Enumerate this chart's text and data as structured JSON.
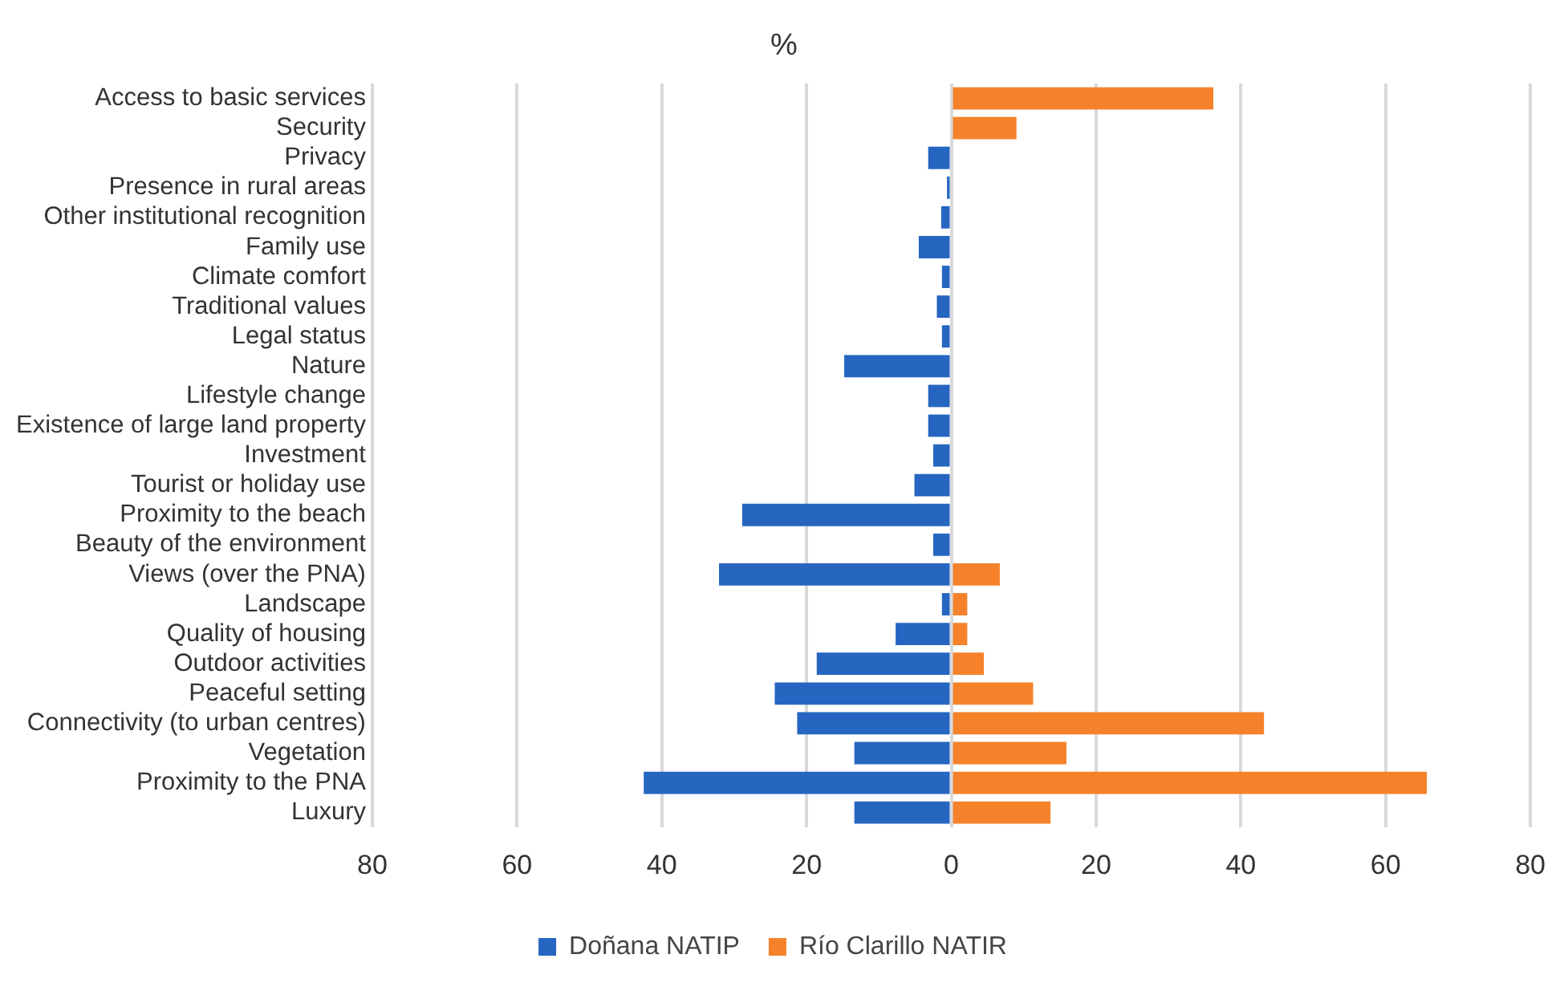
{
  "chart_data": {
    "type": "bar",
    "orientation": "horizontal",
    "title": "%",
    "categories": [
      "Access to basic services",
      "Security",
      "Privacy",
      "Presence in rural areas",
      "Other institutional recognition",
      "Family use",
      "Climate comfort",
      "Traditional values",
      "Legal status",
      "Nature",
      "Lifestyle change",
      "Existence of large land property",
      "Investment",
      "Tourist or holiday use",
      "Proximity to the beach",
      "Beauty of the environment",
      "Views (over the PNA)",
      "Landscape",
      "Quality of housing",
      "Outdoor activities",
      "Peaceful setting",
      "Connectivity (to urban centres)",
      "Vegetation",
      "Proximity to the PNA",
      "Luxury"
    ],
    "series": [
      {
        "name": "Doñana NATIP",
        "color": "#2666c1",
        "values": [
          null,
          null,
          -3.2,
          -0.6,
          -1.4,
          -4.5,
          -1.3,
          -2.0,
          -1.3,
          -14.8,
          -3.2,
          -3.2,
          -2.5,
          -5.1,
          -28.9,
          -2.5,
          -32.1,
          -1.3,
          -7.7,
          -18.6,
          -24.4,
          -21.3,
          -13.4,
          -42.5,
          -13.4
        ]
      },
      {
        "name": "Río Clarillo NATIR",
        "color": "#f5822a",
        "values": [
          36.2,
          9.0,
          null,
          null,
          null,
          null,
          null,
          null,
          null,
          null,
          null,
          null,
          null,
          null,
          null,
          null,
          6.7,
          2.2,
          2.2,
          4.5,
          11.3,
          43.2,
          15.9,
          65.7,
          13.7
        ]
      }
    ],
    "xlim": [
      -80,
      80
    ],
    "xticks": [
      {
        "value": -80,
        "label": "80"
      },
      {
        "value": -60,
        "label": "60"
      },
      {
        "value": -40,
        "label": "40"
      },
      {
        "value": -20,
        "label": "20"
      },
      0,
      20,
      40,
      60,
      80
    ],
    "grid": "x",
    "legend": "bottom"
  }
}
